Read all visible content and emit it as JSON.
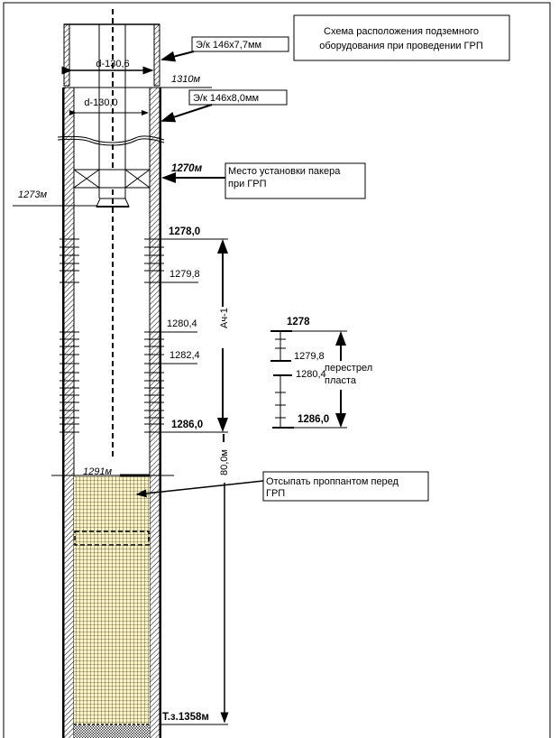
{
  "title": {
    "line1": "Схема расположения подземного",
    "line2": "оборудования при проведении ГРП"
  },
  "casing_upper": {
    "label": "Э/к 146х7,7мм",
    "diameter": "d-130,6"
  },
  "casing_lower": {
    "label": "Э/к 146х8,0мм",
    "diameter": "d-130,0"
  },
  "depths": {
    "casing_joint": "1310м",
    "packer": "1270м",
    "tubing_end": "1273м",
    "top_perf": "1278,0",
    "d1": "1279,8",
    "d2": "1280,4",
    "d3": "1282,4",
    "bottom_perf": "1286,0",
    "proppant_top": "1291м",
    "bottom_hole": "Т.з.1358м"
  },
  "packer_note": {
    "line1": "Место установки пакера",
    "line2": "при ГРП"
  },
  "proppant_note": {
    "line1": "Отсыпать проппантом перед",
    "line2": "ГРП"
  },
  "formation_label": "Ач-1",
  "interval_label": "80,0м",
  "legend": {
    "top": "1278",
    "a": "1279,8",
    "b": "1280,4",
    "bottom": "1286,0",
    "label1": "перестрел",
    "label2": "пласта"
  },
  "colors": {
    "proppant": "#fff5c4",
    "hatch": "#000000"
  }
}
